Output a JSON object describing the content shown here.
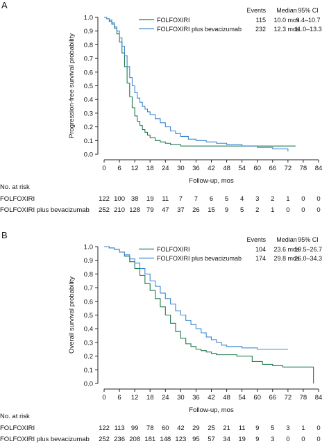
{
  "colors": {
    "folfoxiri": "#1f7a4d",
    "bev": "#3a86d1",
    "axis": "#222222"
  },
  "chart_data": [
    {
      "panel_label": "A",
      "type": "line",
      "step": true,
      "xlabel": "Follow-up, mos",
      "ylabel": "Progression-free survival probability",
      "xlim": [
        0,
        84
      ],
      "ylim": [
        0,
        1.0
      ],
      "xticks": [
        "0",
        "6",
        "12",
        "18",
        "24",
        "30",
        "36",
        "42",
        "48",
        "54",
        "60",
        "66",
        "72",
        "78",
        "84"
      ],
      "yticks": [
        "0.0",
        "0.1",
        "0.2",
        "0.3",
        "0.4",
        "0.5",
        "0.6",
        "0.7",
        "0.8",
        "0.9",
        "1.0"
      ],
      "table_headers": {
        "events": "Events",
        "median": "Median",
        "ci": "95% CI"
      },
      "series": [
        {
          "name": "FOLFOXIRI",
          "color": "#1f7a4d",
          "events": "115",
          "median": "10.0 mos",
          "ci": "9.4–10.7",
          "points": [
            [
              0,
              1.0
            ],
            [
              1,
              0.99
            ],
            [
              2,
              0.97
            ],
            [
              3,
              0.95
            ],
            [
              4,
              0.92
            ],
            [
              5,
              0.88
            ],
            [
              6,
              0.82
            ],
            [
              7,
              0.74
            ],
            [
              8,
              0.64
            ],
            [
              9,
              0.52
            ],
            [
              10,
              0.42
            ],
            [
              11,
              0.34
            ],
            [
              12,
              0.28
            ],
            [
              13,
              0.24
            ],
            [
              14,
              0.21
            ],
            [
              15,
              0.18
            ],
            [
              16,
              0.16
            ],
            [
              17,
              0.14
            ],
            [
              18,
              0.12
            ],
            [
              20,
              0.1
            ],
            [
              22,
              0.09
            ],
            [
              24,
              0.08
            ],
            [
              26,
              0.07
            ],
            [
              28,
              0.07
            ],
            [
              30,
              0.06
            ],
            [
              36,
              0.06
            ],
            [
              42,
              0.06
            ],
            [
              48,
              0.06
            ],
            [
              54,
              0.06
            ],
            [
              60,
              0.06
            ],
            [
              66,
              0.06
            ],
            [
              72,
              0.06
            ],
            [
              75,
              0.06
            ]
          ]
        },
        {
          "name": "FOLFOXIRI plus bevacizumab",
          "color": "#3a86d1",
          "events": "232",
          "median": "12.3 mos",
          "ci": "11.0–13.3",
          "points": [
            [
              0,
              1.0
            ],
            [
              1,
              0.99
            ],
            [
              2,
              0.98
            ],
            [
              3,
              0.96
            ],
            [
              4,
              0.93
            ],
            [
              5,
              0.9
            ],
            [
              6,
              0.85
            ],
            [
              7,
              0.79
            ],
            [
              8,
              0.72
            ],
            [
              9,
              0.64
            ],
            [
              10,
              0.56
            ],
            [
              11,
              0.5
            ],
            [
              12,
              0.45
            ],
            [
              13,
              0.41
            ],
            [
              14,
              0.38
            ],
            [
              15,
              0.35
            ],
            [
              16,
              0.33
            ],
            [
              17,
              0.31
            ],
            [
              18,
              0.29
            ],
            [
              20,
              0.26
            ],
            [
              22,
              0.23
            ],
            [
              24,
              0.2
            ],
            [
              26,
              0.17
            ],
            [
              28,
              0.15
            ],
            [
              30,
              0.13
            ],
            [
              33,
              0.11
            ],
            [
              36,
              0.1
            ],
            [
              40,
              0.09
            ],
            [
              44,
              0.08
            ],
            [
              48,
              0.07
            ],
            [
              54,
              0.06
            ],
            [
              60,
              0.05
            ],
            [
              66,
              0.04
            ],
            [
              70,
              0.04
            ],
            [
              72,
              0.02
            ]
          ]
        }
      ],
      "at_risk": {
        "title": "No. at risk",
        "rows": [
          {
            "label": "FOLFOXIRI",
            "values": [
              "122",
              "100",
              "38",
              "19",
              "11",
              "7",
              "7",
              "6",
              "5",
              "4",
              "3",
              "2",
              "1",
              "0",
              "0"
            ]
          },
          {
            "label": "FOLFOXIRI plus bevacizumab",
            "values": [
              "252",
              "210",
              "128",
              "79",
              "47",
              "37",
              "26",
              "15",
              "9",
              "5",
              "2",
              "1",
              "0",
              "0",
              "0"
            ]
          }
        ]
      }
    },
    {
      "panel_label": "B",
      "type": "line",
      "step": true,
      "xlabel": "Follow-up, mos",
      "ylabel": "Overall survival probability",
      "xlim": [
        0,
        84
      ],
      "ylim": [
        0,
        1.0
      ],
      "xticks": [
        "0",
        "6",
        "12",
        "18",
        "24",
        "30",
        "36",
        "42",
        "48",
        "54",
        "60",
        "66",
        "72",
        "78",
        "84"
      ],
      "yticks": [
        "0.0",
        "0.1",
        "0.2",
        "0.3",
        "0.4",
        "0.5",
        "0.6",
        "0.7",
        "0.8",
        "0.9",
        "1.0"
      ],
      "table_headers": {
        "events": "Events",
        "median": "Median",
        "ci": "95% CI"
      },
      "series": [
        {
          "name": "FOLFOXIRI",
          "color": "#1f7a4d",
          "events": "104",
          "median": "23.6 mos",
          "ci": "19.5–26.7",
          "points": [
            [
              0,
              1.0
            ],
            [
              2,
              0.99
            ],
            [
              4,
              0.98
            ],
            [
              6,
              0.96
            ],
            [
              8,
              0.93
            ],
            [
              10,
              0.89
            ],
            [
              12,
              0.84
            ],
            [
              14,
              0.79
            ],
            [
              16,
              0.73
            ],
            [
              18,
              0.68
            ],
            [
              20,
              0.62
            ],
            [
              22,
              0.56
            ],
            [
              24,
              0.5
            ],
            [
              26,
              0.44
            ],
            [
              28,
              0.38
            ],
            [
              30,
              0.33
            ],
            [
              32,
              0.29
            ],
            [
              34,
              0.27
            ],
            [
              36,
              0.25
            ],
            [
              38,
              0.24
            ],
            [
              40,
              0.23
            ],
            [
              42,
              0.22
            ],
            [
              44,
              0.21
            ],
            [
              48,
              0.21
            ],
            [
              52,
              0.2
            ],
            [
              56,
              0.2
            ],
            [
              58,
              0.16
            ],
            [
              60,
              0.16
            ],
            [
              62,
              0.14
            ],
            [
              66,
              0.13
            ],
            [
              70,
              0.12
            ],
            [
              78,
              0.12
            ],
            [
              80,
              0.12
            ],
            [
              82,
              0.12
            ],
            [
              82,
              0.0
            ]
          ]
        },
        {
          "name": "FOLFOXIRI plus bevacizumab",
          "color": "#3a86d1",
          "events": "174",
          "median": "29.8 mos",
          "ci": "26.0–34.3",
          "points": [
            [
              0,
              1.0
            ],
            [
              2,
              0.99
            ],
            [
              4,
              0.98
            ],
            [
              6,
              0.96
            ],
            [
              8,
              0.94
            ],
            [
              10,
              0.91
            ],
            [
              12,
              0.88
            ],
            [
              14,
              0.84
            ],
            [
              16,
              0.8
            ],
            [
              18,
              0.75
            ],
            [
              20,
              0.71
            ],
            [
              22,
              0.66
            ],
            [
              24,
              0.62
            ],
            [
              26,
              0.58
            ],
            [
              28,
              0.53
            ],
            [
              30,
              0.5
            ],
            [
              32,
              0.46
            ],
            [
              34,
              0.43
            ],
            [
              36,
              0.4
            ],
            [
              38,
              0.37
            ],
            [
              40,
              0.34
            ],
            [
              42,
              0.32
            ],
            [
              44,
              0.3
            ],
            [
              46,
              0.28
            ],
            [
              48,
              0.27
            ],
            [
              54,
              0.26
            ],
            [
              60,
              0.25
            ],
            [
              66,
              0.25
            ],
            [
              72,
              0.25
            ]
          ]
        }
      ],
      "at_risk": {
        "title": "No. at risk",
        "rows": [
          {
            "label": "FOLFOXIRI",
            "values": [
              "122",
              "113",
              "99",
              "78",
              "60",
              "42",
              "29",
              "25",
              "21",
              "11",
              "9",
              "5",
              "3",
              "1",
              "0"
            ]
          },
          {
            "label": "FOLFOXIRI plus bevacizumab",
            "values": [
              "252",
              "236",
              "208",
              "181",
              "148",
              "123",
              "95",
              "57",
              "34",
              "19",
              "9",
              "3",
              "0",
              "0",
              "0"
            ]
          }
        ]
      }
    }
  ]
}
